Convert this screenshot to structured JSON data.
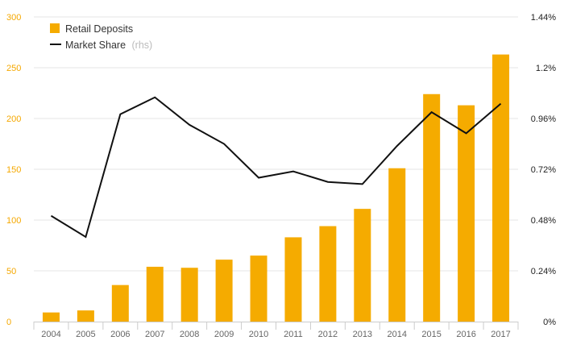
{
  "chart_data": {
    "type": "bar+line",
    "categories": [
      "2004",
      "2005",
      "2006",
      "2007",
      "2008",
      "2009",
      "2010",
      "2011",
      "2012",
      "2013",
      "2014",
      "2015",
      "2016",
      "2017"
    ],
    "series": [
      {
        "name": "Retail Deposits",
        "type": "bar",
        "axis": "left",
        "color": "#f5ab00",
        "values": [
          9,
          11,
          36,
          54,
          53,
          61,
          65,
          83,
          94,
          111,
          151,
          224,
          213,
          263
        ]
      },
      {
        "name": "Market Share",
        "name_suffix": "(rhs)",
        "type": "line",
        "axis": "right",
        "color": "#111111",
        "values": [
          0.5,
          0.4,
          0.98,
          1.06,
          0.93,
          0.84,
          0.68,
          0.71,
          0.66,
          0.65,
          0.83,
          0.99,
          0.89,
          1.03
        ]
      }
    ],
    "left_axis": {
      "min": 0,
      "max": 300,
      "ticks": [
        "0",
        "50",
        "100",
        "150",
        "200",
        "250",
        "300"
      ]
    },
    "right_axis": {
      "min": 0,
      "max": 1.44,
      "ticks": [
        "0%",
        "0.24%",
        "0.48%",
        "0.72%",
        "0.96%",
        "1.2%",
        "1.44%"
      ]
    },
    "grid": true,
    "legend_position": "top-left"
  },
  "legend": {
    "bar_label": "Retail Deposits",
    "line_label": "Market Share",
    "line_suffix": "(rhs)"
  }
}
